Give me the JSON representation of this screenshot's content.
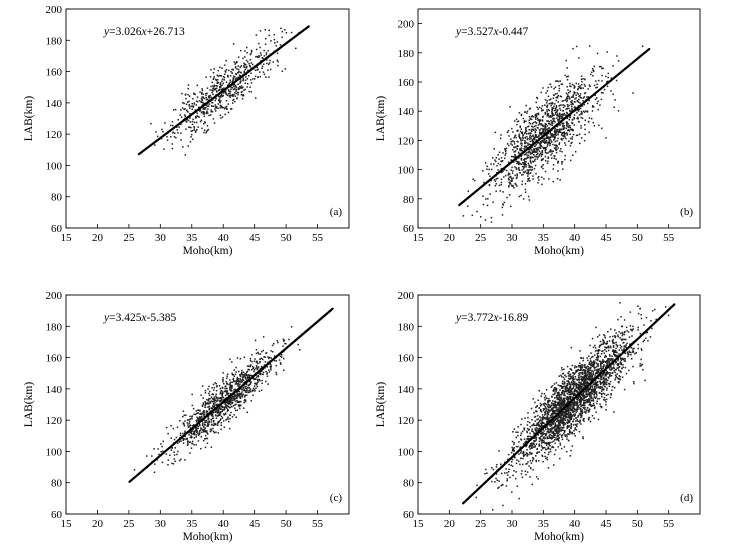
{
  "chart_data": [
    {
      "type": "scatter",
      "panel_label": "(a)",
      "equation_var": "y",
      "equation_eq": "=3.026",
      "equation_x": "x",
      "equation_rest": "+26.713",
      "xlabel": "Moho(km)",
      "ylabel": "LAB(km)",
      "xlim": [
        15,
        60
      ],
      "ylim": [
        60,
        200
      ],
      "xticks": [
        15,
        20,
        25,
        30,
        35,
        40,
        45,
        50,
        55
      ],
      "yticks": [
        60,
        80,
        100,
        120,
        140,
        160,
        180,
        200
      ],
      "fit": {
        "slope": 3.026,
        "intercept": 26.713,
        "x_range": [
          26.6,
          53.6
        ]
      },
      "cloud": {
        "n": 650,
        "center_x": 40,
        "sd_x": 4.3,
        "x_range": [
          28,
          53
        ],
        "noise": 8,
        "seed": 11
      }
    },
    {
      "type": "scatter",
      "panel_label": "(b)",
      "equation_var": "y",
      "equation_eq": "=3.527",
      "equation_x": "x",
      "equation_rest": "-0.447",
      "xlabel": "Moho(km)",
      "ylabel": "LAB(km)",
      "xlim": [
        15,
        60
      ],
      "ylim": [
        60,
        210
      ],
      "xticks": [
        15,
        20,
        25,
        30,
        35,
        40,
        45,
        50,
        55
      ],
      "yticks": [
        60,
        80,
        100,
        120,
        140,
        160,
        180,
        200
      ],
      "fit": {
        "slope": 3.527,
        "intercept": -0.447,
        "x_range": [
          21.6,
          51.9
        ]
      },
      "cloud": {
        "n": 1300,
        "center_x": 35,
        "sd_x": 4.2,
        "x_range": [
          22,
          51
        ],
        "noise": 13,
        "seed": 23
      }
    },
    {
      "type": "scatter",
      "panel_label": "(c)",
      "equation_var": "y",
      "equation_eq": "=3.425",
      "equation_x": "x",
      "equation_rest": "-5.385",
      "xlabel": "Moho(km)",
      "ylabel": "LAB(km)",
      "xlim": [
        15,
        60
      ],
      "ylim": [
        60,
        200
      ],
      "xticks": [
        15,
        20,
        25,
        30,
        35,
        40,
        45,
        50,
        55
      ],
      "yticks": [
        60,
        80,
        100,
        120,
        140,
        160,
        180,
        200
      ],
      "fit": {
        "slope": 3.425,
        "intercept": -5.385,
        "x_range": [
          25.1,
          57.4
        ]
      },
      "cloud": {
        "n": 1100,
        "center_x": 40,
        "sd_x": 4.2,
        "x_range": [
          25,
          57
        ],
        "noise": 7,
        "seed": 37
      }
    },
    {
      "type": "scatter",
      "panel_label": "(d)",
      "equation_var": "y",
      "equation_eq": "=3.772",
      "equation_x": "x",
      "equation_rest": "-16.89",
      "xlabel": "Moho(km)",
      "ylabel": "LAB(km)",
      "xlim": [
        15,
        60
      ],
      "ylim": [
        60,
        200
      ],
      "xticks": [
        15,
        20,
        25,
        30,
        35,
        40,
        45,
        50,
        55
      ],
      "yticks": [
        60,
        80,
        100,
        120,
        140,
        160,
        180,
        200
      ],
      "fit": {
        "slope": 3.772,
        "intercept": -16.89,
        "x_range": [
          22.2,
          55.9
        ]
      },
      "cloud": {
        "n": 2600,
        "center_x": 40,
        "sd_x": 4.6,
        "x_range": [
          22,
          56
        ],
        "noise": 10,
        "seed": 53
      }
    }
  ]
}
